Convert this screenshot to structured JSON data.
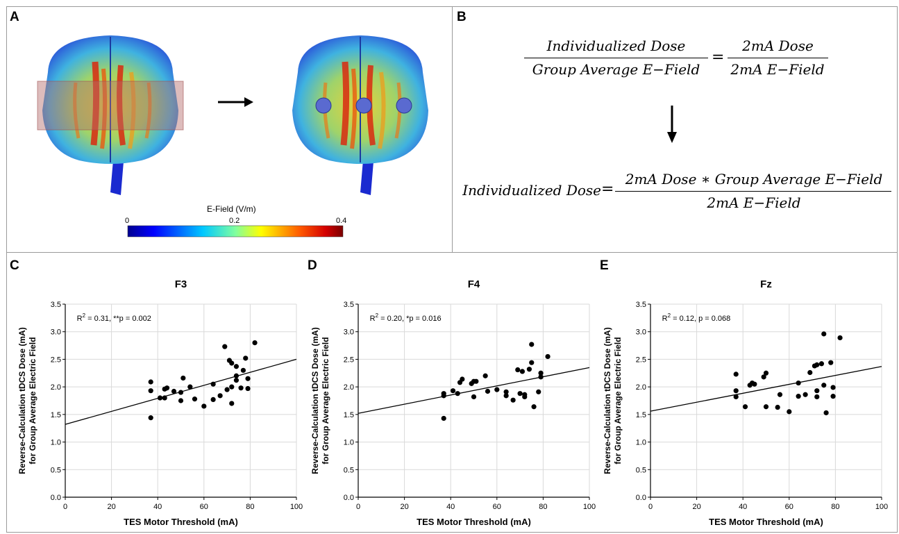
{
  "panels": {
    "a": {
      "letter": "A"
    },
    "b": {
      "letter": "B"
    },
    "c": {
      "letter": "C"
    },
    "d": {
      "letter": "D"
    },
    "e": {
      "letter": "E"
    }
  },
  "panel_a": {
    "colorbar": {
      "title": "E-Field (V/m)",
      "ticks": [
        "0",
        "0.2",
        "0.4"
      ]
    }
  },
  "panel_b": {
    "formula1": {
      "num_left": "Individualized Dose",
      "den_left": "Group Average E−Field",
      "equals": "=",
      "num_right": "2mA Dose",
      "den_right": "2mA E−Field"
    },
    "formula2": {
      "lhs": "Individualized Dose",
      "equals": "=",
      "numerator": "2mA Dose ∗ Group Average E−Field",
      "denominator": "2mA E−Field"
    }
  },
  "chart_data": [
    {
      "type": "scatter",
      "title": "F3",
      "xlabel": "TES Motor Threshold (mA)",
      "ylabel": [
        "Reverse-Calculation tDCS Dose (mA)",
        "for Group Average Electric Field"
      ],
      "xlim": [
        0,
        100
      ],
      "ylim": [
        0,
        3.5
      ],
      "xticks": [
        "0",
        "20",
        "40",
        "60",
        "80",
        "100"
      ],
      "yticks": [
        "0.0",
        "0.5",
        "1.0",
        "1.5",
        "2.0",
        "2.5",
        "3.0",
        "3.5"
      ],
      "grid": true,
      "annotation": {
        "r2": "0.31",
        "p": ", **p = 0.002"
      },
      "fit": {
        "intercept": 1.32,
        "slope": 0.0118
      },
      "points": [
        [
          37,
          2.09
        ],
        [
          37,
          1.93
        ],
        [
          37,
          1.44
        ],
        [
          41,
          1.8
        ],
        [
          43,
          1.8
        ],
        [
          43,
          1.96
        ],
        [
          44,
          1.98
        ],
        [
          47,
          1.92
        ],
        [
          50,
          1.9
        ],
        [
          50,
          1.75
        ],
        [
          51,
          2.16
        ],
        [
          54,
          2.0
        ],
        [
          56,
          1.78
        ],
        [
          60,
          1.65
        ],
        [
          64,
          2.05
        ],
        [
          64,
          1.77
        ],
        [
          67,
          1.84
        ],
        [
          69,
          2.73
        ],
        [
          70,
          1.95
        ],
        [
          71,
          2.48
        ],
        [
          72,
          2.43
        ],
        [
          72,
          1.7
        ],
        [
          72,
          2.0
        ],
        [
          74,
          2.37
        ],
        [
          74,
          2.2
        ],
        [
          74,
          2.12
        ],
        [
          76,
          1.98
        ],
        [
          77,
          2.3
        ],
        [
          78,
          2.52
        ],
        [
          79,
          1.97
        ],
        [
          79,
          2.15
        ],
        [
          82,
          2.8
        ]
      ]
    },
    {
      "type": "scatter",
      "title": "F4",
      "xlabel": "TES Motor Threshold (mA)",
      "ylabel": [
        "Reverse-Calculation tDCS Dose (mA)",
        "for Group Average Electric Field"
      ],
      "xlim": [
        0,
        100
      ],
      "ylim": [
        0,
        3.5
      ],
      "xticks": [
        "0",
        "20",
        "40",
        "60",
        "80",
        "100"
      ],
      "yticks": [
        "0.0",
        "0.5",
        "1.0",
        "1.5",
        "2.0",
        "2.5",
        "3.0",
        "3.5"
      ],
      "grid": true,
      "annotation": {
        "r2": "0.20",
        "p": ", *p = 0.016"
      },
      "fit": {
        "intercept": 1.52,
        "slope": 0.0083
      },
      "points": [
        [
          37,
          1.88
        ],
        [
          37,
          1.84
        ],
        [
          37,
          1.43
        ],
        [
          41,
          1.93
        ],
        [
          43,
          1.88
        ],
        [
          44,
          2.08
        ],
        [
          45,
          2.14
        ],
        [
          49,
          2.06
        ],
        [
          50,
          1.82
        ],
        [
          50,
          2.1
        ],
        [
          51,
          2.1
        ],
        [
          55,
          2.2
        ],
        [
          56,
          1.92
        ],
        [
          60,
          1.95
        ],
        [
          64,
          1.91
        ],
        [
          64,
          1.84
        ],
        [
          67,
          1.76
        ],
        [
          69,
          2.31
        ],
        [
          70,
          1.88
        ],
        [
          71,
          2.28
        ],
        [
          72,
          1.86
        ],
        [
          72,
          1.82
        ],
        [
          74,
          2.32
        ],
        [
          75,
          2.77
        ],
        [
          75,
          2.44
        ],
        [
          76,
          1.64
        ],
        [
          78,
          1.91
        ],
        [
          79,
          2.18
        ],
        [
          79,
          2.25
        ],
        [
          82,
          2.55
        ]
      ]
    },
    {
      "type": "scatter",
      "title": "Fz",
      "xlabel": "TES Motor Threshold (mA)",
      "ylabel": [
        "Reverse-Calculation tDCS Dose (mA)",
        "for Group Average Electric Field"
      ],
      "xlim": [
        0,
        100
      ],
      "ylim": [
        0,
        3.5
      ],
      "xticks": [
        "0",
        "20",
        "40",
        "60",
        "80",
        "100"
      ],
      "yticks": [
        "0.0",
        "0.5",
        "1.0",
        "1.5",
        "2.0",
        "2.5",
        "3.0",
        "3.5"
      ],
      "grid": true,
      "annotation": {
        "r2": "0.12",
        "p": ", p = 0.068"
      },
      "fit": {
        "intercept": 1.56,
        "slope": 0.0081
      },
      "points": [
        [
          37,
          2.23
        ],
        [
          37,
          1.93
        ],
        [
          37,
          1.82
        ],
        [
          41,
          1.64
        ],
        [
          43,
          2.03
        ],
        [
          44,
          2.07
        ],
        [
          45,
          2.05
        ],
        [
          49,
          2.18
        ],
        [
          50,
          2.25
        ],
        [
          50,
          1.64
        ],
        [
          55,
          1.63
        ],
        [
          56,
          1.86
        ],
        [
          60,
          1.55
        ],
        [
          64,
          1.83
        ],
        [
          64,
          2.07
        ],
        [
          67,
          1.86
        ],
        [
          69,
          2.26
        ],
        [
          71,
          2.38
        ],
        [
          72,
          2.4
        ],
        [
          72,
          1.93
        ],
        [
          72,
          1.82
        ],
        [
          74,
          2.42
        ],
        [
          75,
          2.96
        ],
        [
          75,
          2.03
        ],
        [
          76,
          1.53
        ],
        [
          78,
          2.44
        ],
        [
          79,
          1.99
        ],
        [
          79,
          1.83
        ],
        [
          82,
          2.89
        ]
      ]
    }
  ]
}
